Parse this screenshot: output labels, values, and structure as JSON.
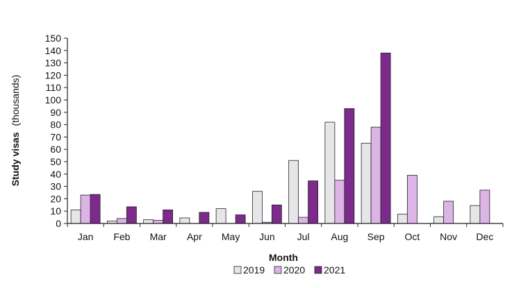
{
  "chart_data": {
    "type": "bar",
    "title": "",
    "xlabel": "Month",
    "ylabel_bold": "Study visas",
    "ylabel_rest": "(thousands)",
    "ylim": [
      0,
      150
    ],
    "ytick_step": 10,
    "categories": [
      "Jan",
      "Feb",
      "Mar",
      "Apr",
      "May",
      "Jun",
      "Jul",
      "Aug",
      "Sep",
      "Oct",
      "Nov",
      "Dec"
    ],
    "series": [
      {
        "name": "2019",
        "color": "#e6e6e8",
        "values": [
          11,
          2,
          3,
          4.5,
          12,
          26,
          51,
          82,
          65,
          7.5,
          5.5,
          14.5
        ]
      },
      {
        "name": "2020",
        "color": "#dcb4e6",
        "values": [
          23,
          4,
          2.5,
          0,
          0,
          1,
          5,
          35,
          78,
          39,
          18,
          27
        ]
      },
      {
        "name": "2021",
        "color": "#7c2a8c",
        "values": [
          23.5,
          13.5,
          11,
          9,
          7,
          15,
          34.5,
          93,
          138,
          null,
          null,
          null
        ]
      }
    ],
    "grid": false,
    "legend_position": "bottom-center"
  }
}
